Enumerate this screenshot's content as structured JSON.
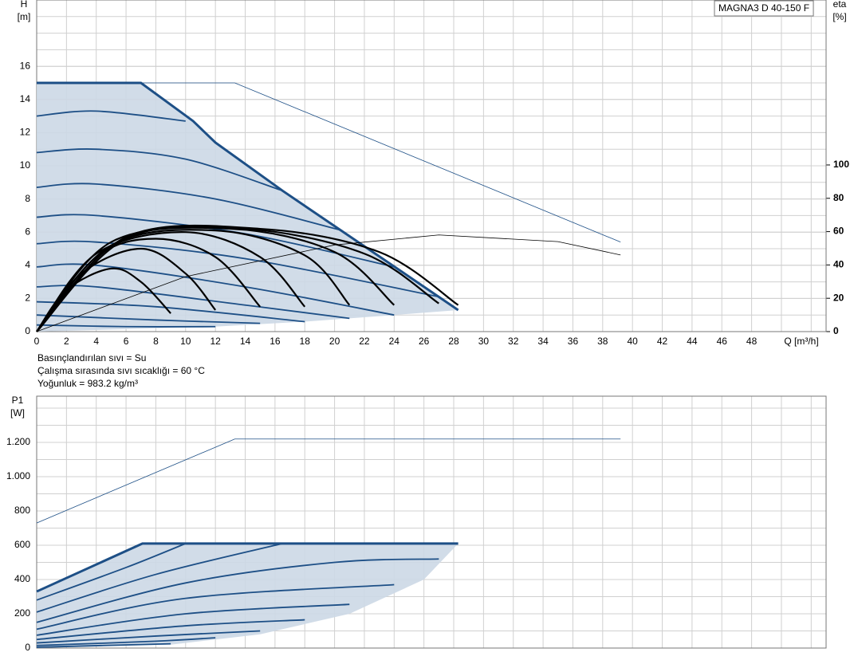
{
  "chart_data": [
    {
      "type": "line",
      "title": "MAGNA3 D 40-150 F",
      "xlabel": "Q [m³/h]",
      "ylabel": "H",
      "yunit": "[m]",
      "y2label": "eta",
      "y2unit": "[%]",
      "notes": [
        "Basınçlandırılan sıvı = Su",
        "Çalışma sırasında sıvı sıcaklığı = 60 °C",
        "Yoğunluk = 983.2 kg/m³"
      ],
      "xlim": [
        0,
        53
      ],
      "xticks": [
        0,
        2,
        4,
        6,
        8,
        10,
        12,
        14,
        16,
        18,
        20,
        22,
        24,
        26,
        28,
        30,
        32,
        34,
        36,
        38,
        40,
        42,
        44,
        46,
        48
      ],
      "ylim": [
        0,
        20
      ],
      "yticks": [
        0,
        2,
        4,
        6,
        8,
        10,
        12,
        14,
        16
      ],
      "y2lim": [
        0,
        199
      ],
      "y2ticks": [
        0,
        20,
        40,
        60,
        80,
        100
      ],
      "grid": true,
      "series": [
        {
          "style": "area",
          "color": "#ccd8e5",
          "x": [
            0,
            7,
            10.5,
            12,
            16.5,
            28.3,
            24,
            18,
            12,
            0
          ],
          "values": [
            15,
            15,
            12.7,
            11.4,
            8.5,
            1.3,
            1.0,
            0.6,
            0.3,
            0
          ]
        },
        {
          "style": "thick",
          "color": "#1d4f86",
          "x": [
            0,
            7,
            10.5,
            12,
            16.5,
            28.3
          ],
          "values": [
            15,
            15,
            12.7,
            11.4,
            8.5,
            1.3
          ]
        },
        {
          "style": "thin",
          "color": "#1d4f86",
          "x": [
            0,
            13.3,
            39.2
          ],
          "values": [
            15,
            15,
            5.4
          ]
        },
        {
          "style": "normal",
          "color": "#1d4f86",
          "x": [
            0,
            4,
            10
          ],
          "values": [
            13,
            13.3,
            12.7
          ]
        },
        {
          "style": "normal",
          "color": "#1d4f86",
          "x": [
            0,
            4,
            10,
            16.5
          ],
          "values": [
            10.8,
            11,
            10.4,
            8.5
          ]
        },
        {
          "style": "normal",
          "color": "#1d4f86",
          "x": [
            0,
            4,
            12,
            20.5
          ],
          "values": [
            8.7,
            8.9,
            8,
            6.1
          ]
        },
        {
          "style": "normal",
          "color": "#1d4f86",
          "x": [
            0,
            4,
            14,
            24
          ],
          "values": [
            6.9,
            7,
            5.9,
            3.9
          ]
        },
        {
          "style": "normal",
          "color": "#1d4f86",
          "x": [
            0,
            4,
            14,
            27
          ],
          "values": [
            5.3,
            5.4,
            4.4,
            2.1
          ]
        },
        {
          "style": "normal",
          "color": "#1d4f86",
          "x": [
            0,
            4,
            14,
            24
          ],
          "values": [
            3.9,
            4,
            2.7,
            1.0
          ]
        },
        {
          "style": "normal",
          "color": "#1d4f86",
          "x": [
            0,
            4,
            14,
            21
          ],
          "values": [
            2.7,
            2.7,
            1.6,
            0.8
          ]
        },
        {
          "style": "normal",
          "color": "#1d4f86",
          "x": [
            0,
            8,
            18
          ],
          "values": [
            1.8,
            1.5,
            0.6
          ]
        },
        {
          "style": "normal",
          "color": "#1d4f86",
          "x": [
            0,
            8,
            15
          ],
          "values": [
            1.0,
            0.7,
            0.5
          ]
        },
        {
          "style": "normal",
          "color": "#1d4f86",
          "x": [
            0,
            6,
            12
          ],
          "values": [
            0.4,
            0.3,
            0.3
          ]
        },
        {
          "style": "black",
          "color": "#000000",
          "x": [
            0,
            2,
            5,
            7,
            9
          ],
          "values": [
            0,
            2.5,
            3.8,
            3,
            1.1
          ]
        },
        {
          "style": "black",
          "color": "#000000",
          "x": [
            0,
            3,
            7,
            10,
            12
          ],
          "values": [
            0,
            3.5,
            5,
            3.5,
            1.3
          ]
        },
        {
          "style": "black",
          "color": "#000000",
          "x": [
            0,
            4,
            8,
            12,
            15
          ],
          "values": [
            0,
            4.5,
            5.6,
            4.5,
            1.5
          ]
        },
        {
          "style": "black",
          "color": "#000000",
          "x": [
            0,
            4,
            10,
            15,
            18
          ],
          "values": [
            0,
            4.7,
            6,
            4.5,
            1.5
          ]
        },
        {
          "style": "black",
          "color": "#000000",
          "x": [
            0,
            5,
            12,
            18,
            21
          ],
          "values": [
            0,
            5.2,
            6.1,
            4.6,
            1.6
          ]
        },
        {
          "style": "black",
          "color": "#000000",
          "x": [
            0,
            5,
            13,
            20,
            24
          ],
          "values": [
            0,
            5.4,
            6.2,
            4.8,
            1.6
          ]
        },
        {
          "style": "black",
          "color": "#000000",
          "x": [
            0,
            6,
            14,
            22,
            27
          ],
          "values": [
            0,
            5.6,
            6.2,
            4.7,
            1.7
          ]
        },
        {
          "style": "black",
          "color": "#000000",
          "x": [
            0,
            6,
            15,
            23,
            28.3
          ],
          "values": [
            0,
            5.7,
            6.2,
            4.8,
            1.6
          ]
        },
        {
          "style": "thin",
          "axis": "y2",
          "color": "#000000",
          "x": [
            0,
            10,
            20,
            27,
            35,
            39.2
          ],
          "values": [
            0,
            33,
            52,
            58,
            54,
            46
          ]
        }
      ]
    },
    {
      "type": "line",
      "ylabel": "P1",
      "yunit": "[W]",
      "xlim": [
        0,
        53
      ],
      "xticks": [
        0,
        2,
        4,
        6,
        8,
        10,
        12,
        14,
        16,
        18,
        20,
        22,
        24,
        26,
        28,
        30,
        32,
        34,
        36,
        38,
        40,
        42,
        44,
        46,
        48
      ],
      "ylim": [
        0,
        1470
      ],
      "yticks": [
        0,
        200,
        400,
        600,
        800,
        {
          "value": 1000,
          "label": "1.000"
        },
        {
          "value": 1200,
          "label": "1.200"
        }
      ],
      "grid": true,
      "series": [
        {
          "style": "area",
          "color": "#ccd8e5",
          "x": [
            0,
            7.1,
            28.3,
            26,
            21,
            15,
            9,
            0
          ],
          "values": [
            330,
            610,
            610,
            400,
            200,
            80,
            20,
            0
          ]
        },
        {
          "style": "thick",
          "color": "#1d4f86",
          "x": [
            0,
            7.1,
            28.3
          ],
          "values": [
            330,
            610,
            610
          ]
        },
        {
          "style": "thin",
          "color": "#1d4f86",
          "x": [
            0,
            13.3,
            39.2
          ],
          "values": [
            730,
            1220,
            1220
          ]
        },
        {
          "style": "normal",
          "color": "#1d4f86",
          "x": [
            0,
            6,
            10
          ],
          "values": [
            280,
            470,
            610
          ]
        },
        {
          "style": "normal",
          "color": "#1d4f86",
          "x": [
            0,
            8,
            16.5
          ],
          "values": [
            210,
            430,
            610
          ]
        },
        {
          "style": "normal",
          "color": "#1d4f86",
          "x": [
            0,
            10,
            20,
            27
          ],
          "values": [
            150,
            380,
            500,
            520
          ]
        },
        {
          "style": "normal",
          "color": "#1d4f86",
          "x": [
            0,
            10,
            24
          ],
          "values": [
            110,
            290,
            370
          ]
        },
        {
          "style": "normal",
          "color": "#1d4f86",
          "x": [
            0,
            10,
            21
          ],
          "values": [
            75,
            200,
            255
          ]
        },
        {
          "style": "normal",
          "color": "#1d4f86",
          "x": [
            0,
            10,
            18
          ],
          "values": [
            50,
            130,
            165
          ]
        },
        {
          "style": "normal",
          "color": "#1d4f86",
          "x": [
            0,
            8,
            15
          ],
          "values": [
            30,
            70,
            100
          ]
        },
        {
          "style": "normal",
          "color": "#1d4f86",
          "x": [
            0,
            8,
            12
          ],
          "values": [
            15,
            40,
            60
          ]
        },
        {
          "style": "normal",
          "color": "#1d4f86",
          "x": [
            0,
            9
          ],
          "values": [
            5,
            25
          ]
        }
      ]
    }
  ]
}
